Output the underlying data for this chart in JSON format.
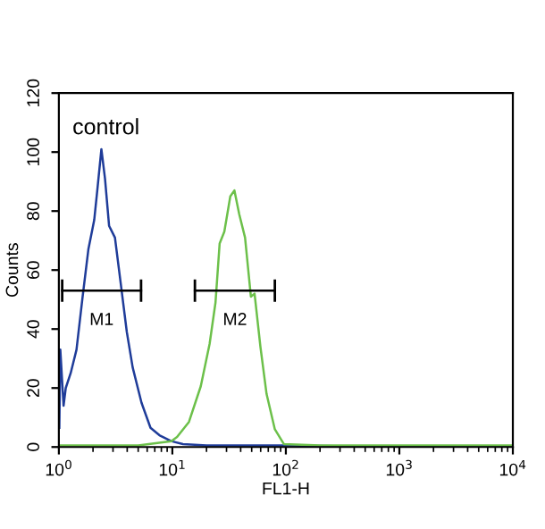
{
  "chart_data": {
    "type": "line",
    "xlabel": "FL1-H",
    "ylabel": "Counts",
    "log": "x",
    "grid": false,
    "legend": false,
    "xlim": [
      1,
      10000
    ],
    "ylim": [
      0,
      120
    ],
    "xticks": [
      {
        "value": 1,
        "label": "10$^{0}$"
      },
      {
        "value": 10,
        "label": "10$^{1}$"
      },
      {
        "value": 100,
        "label": "10$^{2}$"
      },
      {
        "value": 1000,
        "label": "10$^{3}$"
      },
      {
        "value": 10000,
        "label": "10$^{4}$"
      }
    ],
    "yticks": [
      0,
      20,
      40,
      60,
      80,
      100,
      120
    ],
    "series": [
      {
        "color": "#1f3c99",
        "x": [
          1.01,
          1.03,
          1.1,
          1.15,
          1.27,
          1.43,
          1.62,
          1.82,
          2.05,
          2.18,
          2.37,
          2.55,
          2.77,
          3.12,
          3.52,
          3.97,
          4.47,
          5.35,
          6.42,
          7.69,
          9.75,
          12.4,
          20,
          50,
          100,
          1000,
          10000
        ],
        "values": [
          6.5,
          33,
          14,
          20,
          25,
          33,
          51,
          67,
          77,
          87,
          101,
          91,
          75,
          71,
          55,
          39,
          27,
          15,
          6.5,
          4,
          2,
          1,
          0.5,
          0.5,
          0.5,
          0,
          0
        ]
      },
      {
        "color": "#6cc04a",
        "x": [
          1,
          5,
          9.8,
          11,
          14,
          17.8,
          21.3,
          24,
          26.1,
          28.7,
          32.4,
          35.2,
          38.8,
          43.7,
          49.2,
          53,
          59.7,
          67.6,
          80,
          96,
          200,
          1000,
          10000
        ],
        "values": [
          0.5,
          0.5,
          2,
          3.4,
          8.5,
          20.6,
          35,
          49,
          69,
          73,
          85,
          87,
          79,
          71,
          51,
          52,
          34,
          18,
          6,
          1,
          0.5,
          0.5,
          0.5
        ]
      },
      {
        "color": "#000000",
        "x": [
          1.07,
          5.3
        ],
        "values": [
          53,
          53
        ]
      },
      {
        "color": "#000000",
        "x": [
          15.8,
          80
        ],
        "values": [
          53,
          53
        ]
      }
    ],
    "annotations": [
      "control",
      {
        "text": "M1",
        "x": 2.38,
        "y": 53
      },
      {
        "text": "M2",
        "x": 35.6,
        "y": 53
      }
    ]
  }
}
